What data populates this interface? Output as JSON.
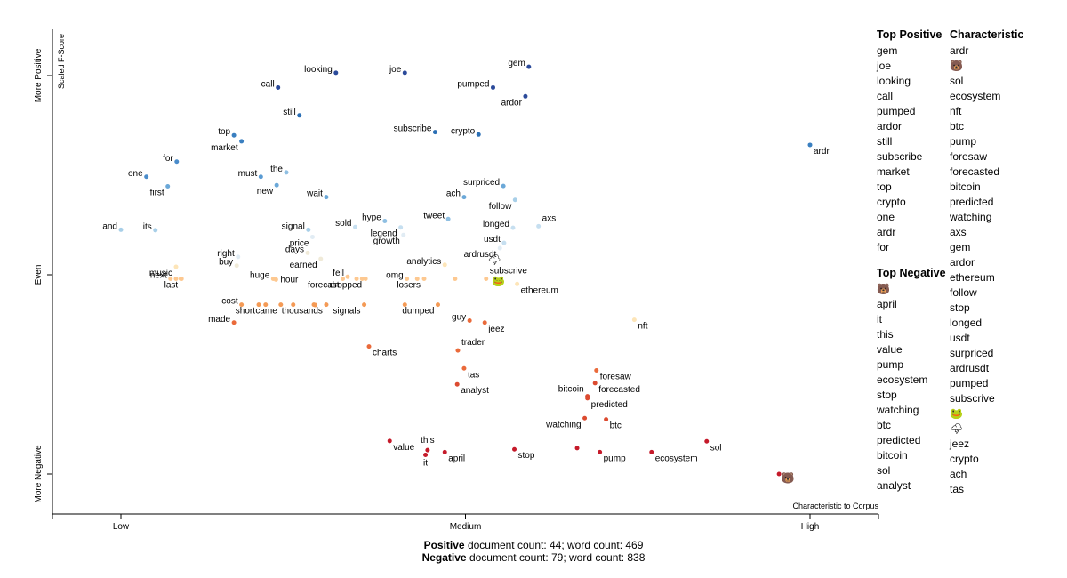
{
  "chart_data": {
    "type": "scatter",
    "title": "",
    "xlabel": "Characteristic to Corpus",
    "ylabel": "Scaled F-Score",
    "x_ticks": [
      "Low",
      "Medium",
      "High"
    ],
    "y_ticks": [
      "More Negative",
      "Even",
      "More Positive"
    ],
    "xlim": [
      0,
      1
    ],
    "ylim": [
      0,
      1
    ],
    "points": [
      {
        "term": "gem",
        "x": 0.592,
        "y": 1.022,
        "color": "#2b4a9a",
        "label": "gem",
        "lp": "l"
      },
      {
        "term": "looking",
        "x": 0.312,
        "y": 1.007,
        "color": "#2b4a9a",
        "label": "looking",
        "lp": "l"
      },
      {
        "term": "joe",
        "x": 0.412,
        "y": 1.007,
        "color": "#2b4a9a",
        "label": "joe",
        "lp": "l"
      },
      {
        "term": "call",
        "x": 0.228,
        "y": 0.97,
        "color": "#2b4a9a",
        "label": "call",
        "lp": "l"
      },
      {
        "term": "pumped",
        "x": 0.54,
        "y": 0.97,
        "color": "#2b4a9a",
        "label": "pumped",
        "lp": "l"
      },
      {
        "term": "ardor",
        "x": 0.587,
        "y": 0.948,
        "color": "#2b4a9a",
        "label": "ardor",
        "lp": "bl"
      },
      {
        "term": "still",
        "x": 0.259,
        "y": 0.9,
        "color": "#2b6fb5",
        "label": "still",
        "lp": "l"
      },
      {
        "term": "subscribe",
        "x": 0.456,
        "y": 0.858,
        "color": "#2b6fb5",
        "label": "subscribe",
        "lp": "l"
      },
      {
        "term": "crypto",
        "x": 0.519,
        "y": 0.852,
        "color": "#2b6fb5",
        "label": "crypto",
        "lp": "l"
      },
      {
        "term": "top",
        "x": 0.164,
        "y": 0.85,
        "color": "#3a7fc0",
        "label": "top",
        "lp": "l"
      },
      {
        "term": "market",
        "x": 0.175,
        "y": 0.835,
        "color": "#3a7fc0",
        "label": "market",
        "lp": "bl"
      },
      {
        "term": "for",
        "x": 0.081,
        "y": 0.784,
        "color": "#4a8ccb",
        "label": "for",
        "lp": "l"
      },
      {
        "term": "one",
        "x": 0.037,
        "y": 0.746,
        "color": "#4a8ccb",
        "label": "one",
        "lp": "l"
      },
      {
        "term": "must",
        "x": 0.203,
        "y": 0.746,
        "color": "#5a9bd3",
        "label": "must",
        "lp": "l"
      },
      {
        "term": "the",
        "x": 0.24,
        "y": 0.757,
        "color": "#8fbfe2",
        "label": "the",
        "lp": "l"
      },
      {
        "term": "first",
        "x": 0.068,
        "y": 0.722,
        "color": "#6ba8d8",
        "label": "first",
        "lp": "bl"
      },
      {
        "term": "new",
        "x": 0.226,
        "y": 0.725,
        "color": "#6ba8d8",
        "label": "new",
        "lp": "bl"
      },
      {
        "term": "wait",
        "x": 0.298,
        "y": 0.695,
        "color": "#6ba8d8",
        "label": "wait",
        "lp": "l"
      },
      {
        "term": "ach",
        "x": 0.498,
        "y": 0.695,
        "color": "#6ba8d8",
        "label": "ach",
        "lp": "l"
      },
      {
        "term": "surpriced",
        "x": 0.555,
        "y": 0.723,
        "color": "#6ba8d8",
        "label": "surpriced",
        "lp": "l"
      },
      {
        "term": "follow",
        "x": 0.572,
        "y": 0.688,
        "color": "#a8cfe8",
        "label": "follow",
        "lp": "bl"
      },
      {
        "term": "and",
        "x": 0.0,
        "y": 0.613,
        "color": "#a8cfe8",
        "label": "and",
        "lp": "l"
      },
      {
        "term": "its",
        "x": 0.05,
        "y": 0.612,
        "color": "#a8cfe8",
        "label": "its",
        "lp": "l"
      },
      {
        "term": "hype",
        "x": 0.383,
        "y": 0.635,
        "color": "#8fbfe2",
        "label": "hype",
        "lp": "l"
      },
      {
        "term": "tweet",
        "x": 0.475,
        "y": 0.64,
        "color": "#8fbfe2",
        "label": "tweet",
        "lp": "l"
      },
      {
        "term": "signal",
        "x": 0.272,
        "y": 0.613,
        "color": "#a8cfe8",
        "label": "signal",
        "lp": "l"
      },
      {
        "term": "sold",
        "x": 0.34,
        "y": 0.62,
        "color": "#c6dff0",
        "label": "sold",
        "lp": "l"
      },
      {
        "term": "legend",
        "x": 0.406,
        "y": 0.619,
        "color": "#c6dff0",
        "label": "legend",
        "lp": "bl"
      },
      {
        "term": "longed",
        "x": 0.569,
        "y": 0.618,
        "color": "#c6dff0",
        "label": "longed",
        "lp": "l"
      },
      {
        "term": "axs",
        "x": 0.606,
        "y": 0.622,
        "color": "#c6dff0",
        "label": "axs",
        "lp": "tr"
      },
      {
        "term": "price",
        "x": 0.278,
        "y": 0.595,
        "color": "#e1ecf4",
        "label": "price",
        "lp": "bl"
      },
      {
        "term": "growth",
        "x": 0.41,
        "y": 0.6,
        "color": "#e1ecf4",
        "label": "growth",
        "lp": "bl"
      },
      {
        "term": "usdt",
        "x": 0.556,
        "y": 0.58,
        "color": "#c6dff0",
        "label": "usdt",
        "lp": "l"
      },
      {
        "term": "ardrusdt",
        "x": 0.55,
        "y": 0.567,
        "color": "#e1ecf4",
        "label": "ardrusdt",
        "lp": "bl"
      },
      {
        "term": "days",
        "x": 0.271,
        "y": 0.555,
        "color": "#f0ead8",
        "label": "days",
        "lp": "l"
      },
      {
        "term": "right",
        "x": 0.17,
        "y": 0.545,
        "color": "#e1ecf4",
        "label": "right",
        "lp": "l"
      },
      {
        "term": "earned",
        "x": 0.29,
        "y": 0.54,
        "color": "#f0ead8",
        "label": "earned",
        "lp": "bl"
      },
      {
        "term": "buy",
        "x": 0.168,
        "y": 0.523,
        "color": "#f0ead8",
        "label": "buy",
        "lp": "l"
      },
      {
        "term": "music",
        "x": 0.08,
        "y": 0.52,
        "color": "#fde5b8",
        "label": "music",
        "lp": "bl"
      },
      {
        "term": "analytics",
        "x": 0.47,
        "y": 0.525,
        "color": "#fde5b8",
        "label": "analytics",
        "lp": "l"
      },
      {
        "term": "next",
        "x": 0.072,
        "y": 0.49,
        "color": "#fdc890",
        "label": "next",
        "lp": "l"
      },
      {
        "term": "last",
        "x": 0.088,
        "y": 0.49,
        "color": "#fdc890",
        "label": "last",
        "lp": "bl"
      },
      {
        "term": "p_last2",
        "x": 0.08,
        "y": 0.49,
        "color": "#fdc890",
        "label": "",
        "lp": "l"
      },
      {
        "term": "p_last3",
        "x": 0.087,
        "y": 0.49,
        "color": "#fdc890",
        "label": "",
        "lp": "l"
      },
      {
        "term": "huge",
        "x": 0.221,
        "y": 0.49,
        "color": "#fdc890",
        "label": "huge",
        "lp": "l"
      },
      {
        "term": "hour",
        "x": 0.225,
        "y": 0.488,
        "color": "#fdc890",
        "label": "hour",
        "lp": "r"
      },
      {
        "term": "fell",
        "x": 0.329,
        "y": 0.495,
        "color": "#fdc890",
        "label": "fell",
        "lp": "l"
      },
      {
        "term": "forecast",
        "x": 0.322,
        "y": 0.49,
        "color": "#fdc890",
        "label": "forecast",
        "lp": "bl"
      },
      {
        "term": "p_fell2",
        "x": 0.342,
        "y": 0.49,
        "color": "#fdc890",
        "label": "",
        "lp": "l"
      },
      {
        "term": "p_fell3",
        "x": 0.35,
        "y": 0.49,
        "color": "#fdc890",
        "label": "",
        "lp": "l"
      },
      {
        "term": "dropped",
        "x": 0.355,
        "y": 0.49,
        "color": "#fdc890",
        "label": "dropped",
        "lp": "bl"
      },
      {
        "term": "omg",
        "x": 0.415,
        "y": 0.49,
        "color": "#fdc890",
        "label": "omg",
        "lp": "l"
      },
      {
        "term": "losers",
        "x": 0.44,
        "y": 0.49,
        "color": "#fdc890",
        "label": "losers",
        "lp": "bl"
      },
      {
        "term": "p_om2",
        "x": 0.43,
        "y": 0.49,
        "color": "#fdc890",
        "label": "",
        "lp": "l"
      },
      {
        "term": "p_om3",
        "x": 0.485,
        "y": 0.49,
        "color": "#fdc890",
        "label": "",
        "lp": "l"
      },
      {
        "term": "subscrive",
        "x": 0.53,
        "y": 0.49,
        "color": "#fdc890",
        "label": "subscrive",
        "lp": "tr"
      },
      {
        "term": "ethereum",
        "x": 0.575,
        "y": 0.477,
        "color": "#fde5b8",
        "label": "ethereum",
        "lp": "br"
      },
      {
        "term": "cost",
        "x": 0.175,
        "y": 0.425,
        "color": "#f49a55",
        "label": "cost",
        "lp": "l"
      },
      {
        "term": "short",
        "x": 0.2,
        "y": 0.425,
        "color": "#f49a55",
        "label": "short",
        "lp": "bl"
      },
      {
        "term": "came",
        "x": 0.232,
        "y": 0.425,
        "color": "#f49a55",
        "label": "came",
        "lp": "bl"
      },
      {
        "term": "p_cost2",
        "x": 0.21,
        "y": 0.425,
        "color": "#f49a55",
        "label": "",
        "lp": "l"
      },
      {
        "term": "p_cost3",
        "x": 0.25,
        "y": 0.425,
        "color": "#f49a55",
        "label": "",
        "lp": "l"
      },
      {
        "term": "thousands",
        "x": 0.298,
        "y": 0.425,
        "color": "#f49a55",
        "label": "thousands",
        "lp": "bl"
      },
      {
        "term": "p_th2",
        "x": 0.28,
        "y": 0.425,
        "color": "#f49a55",
        "label": "",
        "lp": "l"
      },
      {
        "term": "p_th3",
        "x": 0.282,
        "y": 0.424,
        "color": "#f49a55",
        "label": "",
        "lp": "l"
      },
      {
        "term": "signals",
        "x": 0.353,
        "y": 0.425,
        "color": "#f49a55",
        "label": "signals",
        "lp": "bl"
      },
      {
        "term": "p_sig2",
        "x": 0.412,
        "y": 0.425,
        "color": "#f49a55",
        "label": "",
        "lp": "l"
      },
      {
        "term": "dumped",
        "x": 0.46,
        "y": 0.425,
        "color": "#f49a55",
        "label": "dumped",
        "lp": "bl"
      },
      {
        "term": "made",
        "x": 0.164,
        "y": 0.38,
        "color": "#ea6a3a",
        "label": "made",
        "lp": "l"
      },
      {
        "term": "guy",
        "x": 0.506,
        "y": 0.385,
        "color": "#ea6a3a",
        "label": "guy",
        "lp": "l"
      },
      {
        "term": "jeez",
        "x": 0.528,
        "y": 0.38,
        "color": "#ea6a3a",
        "label": "jeez",
        "lp": "br"
      },
      {
        "term": "nft",
        "x": 0.745,
        "y": 0.387,
        "color": "#fde5b8",
        "label": "nft",
        "lp": "br"
      },
      {
        "term": "charts",
        "x": 0.36,
        "y": 0.32,
        "color": "#ea6a3a",
        "label": "charts",
        "lp": "br"
      },
      {
        "term": "trader",
        "x": 0.489,
        "y": 0.31,
        "color": "#ea6a3a",
        "label": "trader",
        "lp": "tr"
      },
      {
        "term": "tas",
        "x": 0.498,
        "y": 0.265,
        "color": "#ea6a3a",
        "label": "tas",
        "lp": "br"
      },
      {
        "term": "analyst",
        "x": 0.488,
        "y": 0.225,
        "color": "#dc4b30",
        "label": "analyst",
        "lp": "br"
      },
      {
        "term": "foresaw",
        "x": 0.69,
        "y": 0.26,
        "color": "#ea6a3a",
        "label": "foresaw",
        "lp": "br"
      },
      {
        "term": "forecasted",
        "x": 0.688,
        "y": 0.228,
        "color": "#dc4b30",
        "label": "forecasted",
        "lp": "br"
      },
      {
        "term": "bitcoin",
        "x": 0.677,
        "y": 0.195,
        "color": "#dc4b30",
        "label": "bitcoin",
        "lp": "tl"
      },
      {
        "term": "predicted",
        "x": 0.677,
        "y": 0.19,
        "color": "#dc4b30",
        "label": "predicted",
        "lp": "br"
      },
      {
        "term": "watching",
        "x": 0.673,
        "y": 0.14,
        "color": "#dc4b30",
        "label": "watching",
        "lp": "bl"
      },
      {
        "term": "btc",
        "x": 0.704,
        "y": 0.137,
        "color": "#dc4b30",
        "label": "btc",
        "lp": "br"
      },
      {
        "term": "value",
        "x": 0.39,
        "y": 0.083,
        "color": "#c51a2a",
        "label": "value",
        "lp": "br"
      },
      {
        "term": "this",
        "x": 0.445,
        "y": 0.06,
        "color": "#c51a2a",
        "label": "this",
        "lp": "t"
      },
      {
        "term": "it",
        "x": 0.442,
        "y": 0.048,
        "color": "#c51a2a",
        "label": "it",
        "lp": "b"
      },
      {
        "term": "april",
        "x": 0.47,
        "y": 0.055,
        "color": "#c51a2a",
        "label": "april",
        "lp": "br"
      },
      {
        "term": "stop",
        "x": 0.571,
        "y": 0.062,
        "color": "#c51a2a",
        "label": "stop",
        "lp": "br"
      },
      {
        "term": "pump",
        "x": 0.695,
        "y": 0.055,
        "color": "#c51a2a",
        "label": "pump",
        "lp": "br"
      },
      {
        "term": "ecosystem",
        "x": 0.77,
        "y": 0.055,
        "color": "#c51a2a",
        "label": "ecosystem",
        "lp": "br"
      },
      {
        "term": "sol",
        "x": 0.85,
        "y": 0.082,
        "color": "#c51a2a",
        "label": "sol",
        "lp": "br"
      },
      {
        "term": "p_s2",
        "x": 0.662,
        "y": 0.065,
        "color": "#c51a2a",
        "label": "",
        "lp": "l"
      },
      {
        "term": "ardr",
        "x": 1.0,
        "y": 0.826,
        "color": "#3a7fc0",
        "label": "ardr",
        "lp": "br"
      },
      {
        "term": "p_bear",
        "x": 0.955,
        "y": 0.0,
        "color": "#c51a2a",
        "label": "",
        "lp": "l"
      }
    ],
    "emoji_points": [
      {
        "term": "lightning-emoji",
        "x": 0.542,
        "y": 0.54,
        "glyph": "🌩"
      },
      {
        "term": "frog-emoji",
        "x": 0.548,
        "y": 0.487,
        "glyph": "🐸"
      },
      {
        "term": "bear-emoji",
        "x": 0.968,
        "y": -0.008,
        "glyph": "🐻"
      }
    ]
  },
  "top_positive": {
    "header": "Top Positive",
    "terms": [
      "gem",
      "joe",
      "looking",
      "call",
      "pumped",
      "ardor",
      "still",
      "subscribe",
      "market",
      "top",
      "crypto",
      "one",
      "ardr",
      "for"
    ]
  },
  "top_negative": {
    "header": "Top Negative",
    "terms": [
      "🐻",
      "april",
      "it",
      "this",
      "value",
      "pump",
      "ecosystem",
      "stop",
      "watching",
      "btc",
      "predicted",
      "bitcoin",
      "sol",
      "analyst"
    ]
  },
  "characteristic": {
    "header": "Characteristic",
    "terms": [
      "ardr",
      "🐻",
      "sol",
      "ecosystem",
      "nft",
      "btc",
      "pump",
      "foresaw",
      "forecasted",
      "bitcoin",
      "predicted",
      "watching",
      "axs",
      "gem",
      "ardor",
      "ethereum",
      "follow",
      "stop",
      "longed",
      "usdt",
      "surpriced",
      "ardrusdt",
      "pumped",
      "subscrive",
      "🐸",
      "🌩",
      "jeez",
      "crypto",
      "ach",
      "tas"
    ]
  },
  "footer": {
    "positive_label": "Positive",
    "positive_stats": " document count: 44; word count: 469",
    "negative_label": "Negative",
    "negative_stats": " document count: 79; word count: 838"
  }
}
